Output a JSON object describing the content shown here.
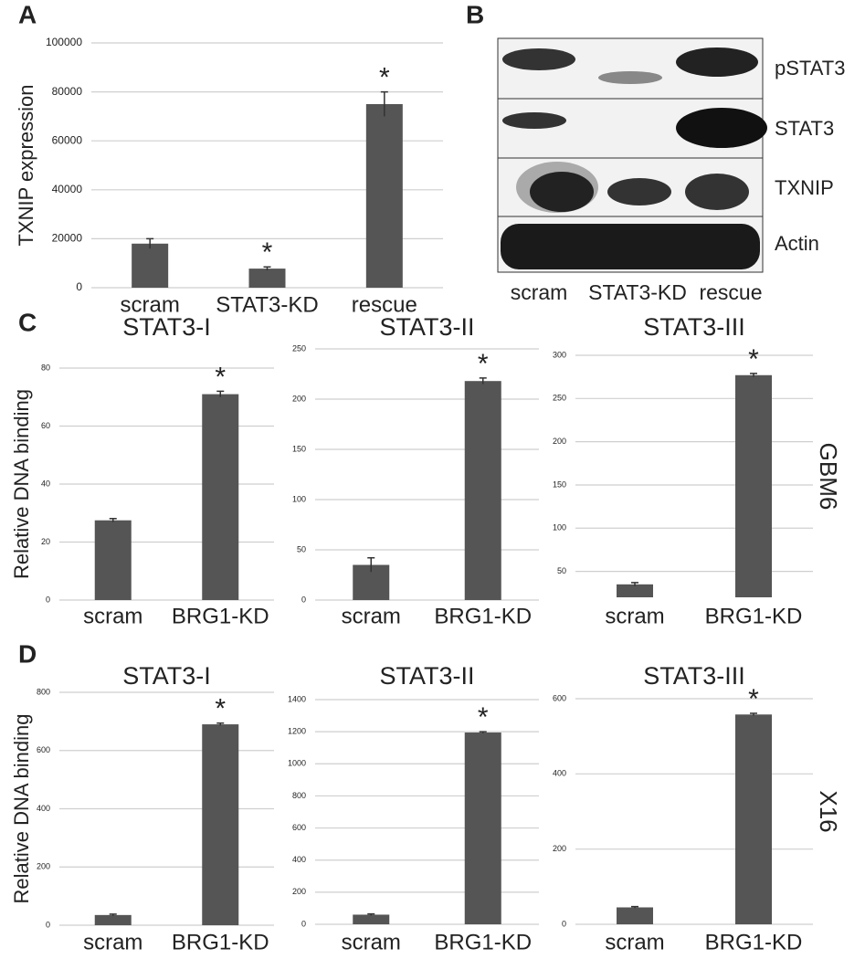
{
  "chart_data": [
    {
      "type": "bar",
      "panel": "A",
      "ylabel": "TXNIP expression",
      "categories": [
        "scram",
        "STAT3-KD",
        "rescue"
      ],
      "values": [
        18000,
        7800,
        75000
      ],
      "errors": [
        2000,
        700,
        5000
      ],
      "annotations": [
        null,
        "*",
        "*"
      ],
      "ylim": [
        0,
        100000
      ],
      "yticks": [
        0,
        20000,
        40000,
        60000,
        80000,
        100000
      ],
      "grid": true,
      "color": "#555555"
    },
    {
      "type": "bar",
      "panel": "C",
      "title": "STAT3-I",
      "ylabel": "Relative DNA binding",
      "categories": [
        "scram",
        "BRG1-KD"
      ],
      "values": [
        27.5,
        71
      ],
      "errors": [
        0.6,
        1
      ],
      "annotations": [
        null,
        "*"
      ],
      "ylim": [
        0,
        80
      ],
      "yticks": [
        0,
        20,
        40,
        60,
        80
      ],
      "grid": true,
      "color": "#555555"
    },
    {
      "type": "bar",
      "title": "STAT3-II",
      "categories": [
        "scram",
        "BRG1-KD"
      ],
      "values": [
        35,
        218
      ],
      "errors": [
        7,
        3
      ],
      "annotations": [
        null,
        "*"
      ],
      "ylim": [
        0,
        250
      ],
      "yticks": [
        0,
        50,
        100,
        150,
        200,
        250
      ],
      "grid": true,
      "color": "#555555"
    },
    {
      "type": "bar",
      "title": "STAT3-III",
      "side_label": "GBM6",
      "categories": [
        "scram",
        "BRG1-KD"
      ],
      "values": [
        35,
        277
      ],
      "errors": [
        2,
        2
      ],
      "annotations": [
        null,
        "*"
      ],
      "ylim": [
        20,
        300
      ],
      "yticks": [
        50,
        100,
        150,
        200,
        250,
        300
      ],
      "grid": true,
      "color": "#555555"
    },
    {
      "type": "bar",
      "panel": "D",
      "title": "STAT3-I",
      "ylabel": "Relative DNA binding",
      "categories": [
        "scram",
        "BRG1-KD"
      ],
      "values": [
        35,
        690
      ],
      "errors": [
        3,
        4
      ],
      "annotations": [
        null,
        "*"
      ],
      "ylim": [
        0,
        800
      ],
      "yticks": [
        0,
        200,
        400,
        600,
        800
      ],
      "grid": true,
      "color": "#555555"
    },
    {
      "type": "bar",
      "title": "STAT3-II",
      "categories": [
        "scram",
        "BRG1-KD"
      ],
      "values": [
        60,
        1195
      ],
      "errors": [
        5,
        5
      ],
      "annotations": [
        null,
        "*"
      ],
      "ylim": [
        0,
        1400
      ],
      "yticks": [
        0,
        200,
        400,
        600,
        800,
        1000,
        1200,
        1400
      ],
      "grid": true,
      "color": "#555555"
    },
    {
      "type": "bar",
      "title": "STAT3-III",
      "side_label": "X16",
      "categories": [
        "scram",
        "BRG1-KD"
      ],
      "values": [
        45,
        558
      ],
      "errors": [
        2,
        3
      ],
      "annotations": [
        null,
        "*"
      ],
      "ylim": [
        0,
        600
      ],
      "yticks": [
        0,
        200,
        400,
        600
      ],
      "grid": true,
      "color": "#555555"
    }
  ],
  "blot": {
    "panel": "B",
    "rows": [
      "pSTAT3",
      "STAT3",
      "TXNIP",
      "Actin"
    ],
    "lanes": [
      "scram",
      "STAT3-KD",
      "rescue"
    ]
  }
}
